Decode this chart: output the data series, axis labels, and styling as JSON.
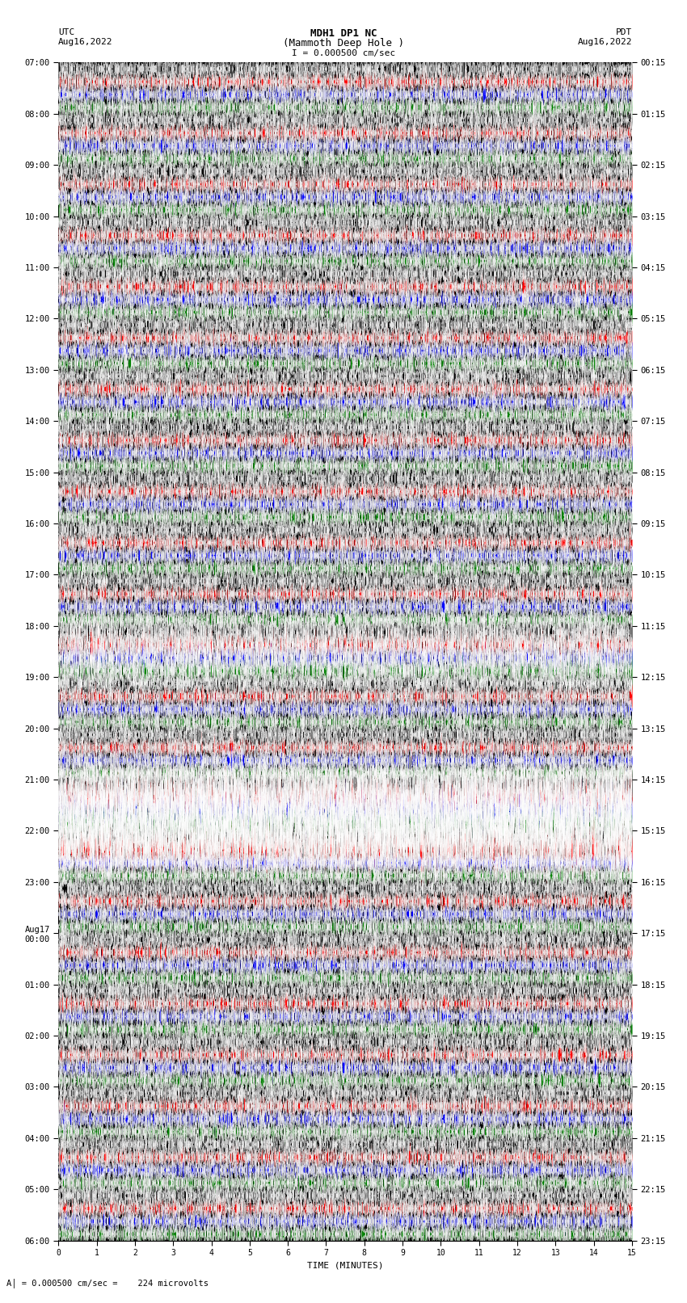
{
  "title_line1": "MDH1 DP1 NC",
  "title_line2": "(Mammoth Deep Hole )",
  "scale_text": "I = 0.000500 cm/sec",
  "bottom_text": "= 0.000500 cm/sec =    224 microvolts",
  "left_label": "UTC",
  "left_date": "Aug16,2022",
  "right_label": "PDT",
  "right_date": "Aug16,2022",
  "xlabel": "TIME (MINUTES)",
  "utc_labels": [
    [
      0,
      "07:00"
    ],
    [
      4,
      "08:00"
    ],
    [
      8,
      "09:00"
    ],
    [
      12,
      "10:00"
    ],
    [
      16,
      "11:00"
    ],
    [
      20,
      "12:00"
    ],
    [
      24,
      "13:00"
    ],
    [
      28,
      "14:00"
    ],
    [
      32,
      "15:00"
    ],
    [
      36,
      "16:00"
    ],
    [
      40,
      "17:00"
    ],
    [
      44,
      "18:00"
    ],
    [
      48,
      "19:00"
    ],
    [
      52,
      "20:00"
    ],
    [
      56,
      "21:00"
    ],
    [
      60,
      "22:00"
    ],
    [
      64,
      "23:00"
    ],
    [
      68,
      "Aug17\n00:00"
    ],
    [
      72,
      "01:00"
    ],
    [
      76,
      "02:00"
    ],
    [
      80,
      "03:00"
    ],
    [
      84,
      "04:00"
    ],
    [
      88,
      "05:00"
    ],
    [
      92,
      "06:00"
    ]
  ],
  "pdt_labels": [
    [
      0,
      "00:15"
    ],
    [
      4,
      "01:15"
    ],
    [
      8,
      "02:15"
    ],
    [
      12,
      "03:15"
    ],
    [
      16,
      "04:15"
    ],
    [
      20,
      "05:15"
    ],
    [
      24,
      "06:15"
    ],
    [
      28,
      "07:15"
    ],
    [
      32,
      "08:15"
    ],
    [
      36,
      "09:15"
    ],
    [
      40,
      "10:15"
    ],
    [
      44,
      "11:15"
    ],
    [
      48,
      "12:15"
    ],
    [
      52,
      "13:15"
    ],
    [
      56,
      "14:15"
    ],
    [
      60,
      "15:15"
    ],
    [
      64,
      "16:15"
    ],
    [
      68,
      "17:15"
    ],
    [
      72,
      "18:15"
    ],
    [
      76,
      "19:15"
    ],
    [
      80,
      "20:15"
    ],
    [
      84,
      "21:15"
    ],
    [
      88,
      "22:15"
    ],
    [
      92,
      "23:15"
    ]
  ],
  "colors": [
    "black",
    "red",
    "blue",
    "green"
  ],
  "num_rows": 92,
  "minutes": 15,
  "background": "black",
  "figsize": [
    8.5,
    16.13
  ],
  "dpi": 100
}
